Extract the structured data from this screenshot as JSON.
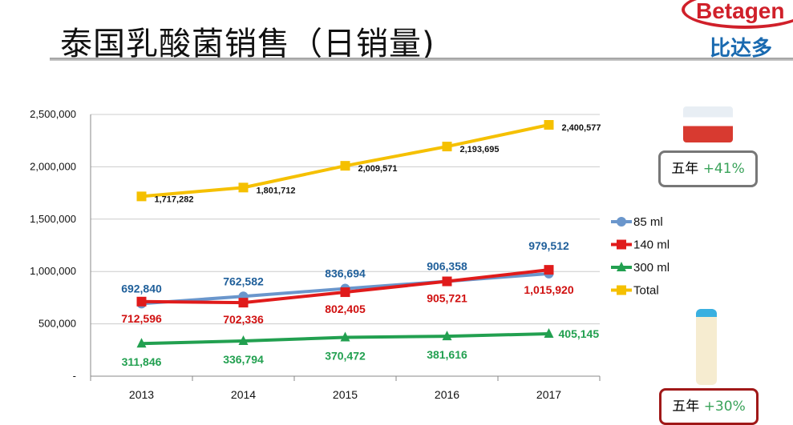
{
  "header": {
    "title": "泰国乳酸菌销售（日销量)",
    "logo_text": "Betagen",
    "logo_cn": "比达多"
  },
  "callouts": [
    {
      "label": "五年",
      "value": "+41%"
    },
    {
      "label": "五年",
      "value": "+30%"
    }
  ],
  "chart_data": {
    "type": "line",
    "categories": [
      "2013",
      "2014",
      "2015",
      "2016",
      "2017"
    ],
    "ylim": [
      0,
      2500000
    ],
    "yticks": [
      0,
      500000,
      1000000,
      1500000,
      2000000,
      2500000
    ],
    "ytick_labels": [
      "-",
      "500,000",
      "1,000,000",
      "1,500,000",
      "2,000,000",
      "2,500,000"
    ],
    "grid": true,
    "legend": "right",
    "series": [
      {
        "name": "85 ml",
        "color": "#6a96cc",
        "marker": "circle",
        "values": [
          692840,
          762582,
          836694,
          906358,
          979512
        ],
        "labels": [
          "692,840",
          "762,582",
          "836,694",
          "906,358",
          "979,512"
        ],
        "label_color": "#1f5f9a"
      },
      {
        "name": "140 ml",
        "color": "#e01b1b",
        "marker": "square",
        "values": [
          712596,
          702336,
          802405,
          905721,
          1015920
        ],
        "labels": [
          "712,596",
          "702,336",
          "802,405",
          "905,721",
          "1,015,920"
        ],
        "label_color": "#d01010"
      },
      {
        "name": "300 ml",
        "color": "#22a050",
        "marker": "triangle",
        "values": [
          311846,
          336794,
          370472,
          381616,
          405145
        ],
        "labels": [
          "311,846",
          "336,794",
          "370,472",
          "381,616",
          "405,145"
        ],
        "label_color": "#22a050"
      },
      {
        "name": "Total",
        "color": "#f5c000",
        "marker": "square",
        "values": [
          1717282,
          1801712,
          2009571,
          2193695,
          2400577
        ],
        "labels": [
          "1,717,282",
          "1,801,712",
          "2,009,571",
          "2,193,695",
          "2,400,577"
        ],
        "label_color": "#111"
      }
    ]
  }
}
